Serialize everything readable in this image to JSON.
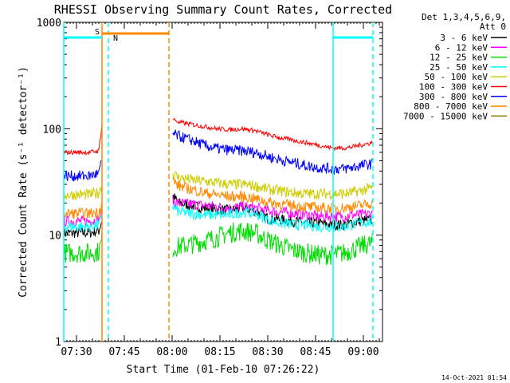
{
  "chart_data": {
    "type": "line",
    "title": "RHESSI Observing Summary Count Rates, Corrected",
    "xlabel": "Start Time (01-Feb-10 07:26:22)",
    "ylabel": "Corrected Count Rate (s⁻¹ detector⁻¹)",
    "yscale": "log",
    "ylim": [
      1,
      1000
    ],
    "xlim_minutes_after_0726": [
      0,
      100
    ],
    "y_ticks": [
      {
        "value": 1,
        "label": "1"
      },
      {
        "value": 10,
        "label": "10"
      },
      {
        "value": 100,
        "label": "100"
      },
      {
        "value": 1000,
        "label": "1000"
      }
    ],
    "x_ticks": [
      {
        "t": 4,
        "label": "07:30"
      },
      {
        "t": 19,
        "label": "07:45"
      },
      {
        "t": 34,
        "label": "08:00"
      },
      {
        "t": 49,
        "label": "08:15"
      },
      {
        "t": 64,
        "label": "08:30"
      },
      {
        "t": 79,
        "label": "08:45"
      },
      {
        "t": 94,
        "label": "09:00"
      }
    ],
    "legend_header": [
      "Det 1,3,4,5,6,9,",
      "Att 0"
    ],
    "legend_position": "right",
    "series": [
      {
        "name": "3 - 6 keV",
        "color": "#000000",
        "x": [
          0,
          8,
          11,
          12,
          33,
          34,
          36,
          40,
          44,
          48,
          52,
          56,
          60,
          64,
          68,
          72,
          76,
          80,
          84,
          88,
          90,
          93,
          97
        ],
        "y": [
          10.5,
          10.5,
          11,
          14,
          null,
          24,
          20,
          19,
          18,
          17.5,
          17,
          18,
          17,
          14.5,
          14,
          13.5,
          13,
          13,
          12.5,
          12.5,
          13,
          13.5,
          14
        ]
      },
      {
        "name": "6 - 12 keV",
        "color": "#ff00ff",
        "x": [
          0,
          8,
          11,
          12,
          33,
          34,
          36,
          40,
          44,
          48,
          52,
          56,
          60,
          64,
          68,
          72,
          76,
          80,
          84,
          88,
          90,
          93,
          97
        ],
        "y": [
          13.5,
          13.5,
          14,
          17,
          null,
          21,
          20,
          19.5,
          19,
          18.5,
          18,
          18.5,
          18,
          17,
          16.5,
          16,
          15.5,
          15,
          15,
          15,
          15.5,
          15.5,
          16
        ]
      },
      {
        "name": "12 - 25 keV",
        "color": "#00dd00",
        "x": [
          0,
          8,
          11,
          12,
          33,
          34,
          36,
          40,
          44,
          48,
          52,
          56,
          60,
          64,
          68,
          72,
          76,
          80,
          84,
          88,
          90,
          93,
          97
        ],
        "y": [
          6.8,
          6.8,
          7,
          9,
          null,
          7.5,
          7.8,
          8.2,
          8.8,
          9.5,
          10.5,
          11,
          10.5,
          9,
          8,
          7.2,
          6.8,
          6.5,
          6.5,
          6.8,
          7.2,
          7.8,
          8.5
        ]
      },
      {
        "name": "25 - 50 keV",
        "color": "#00ffff",
        "x": [
          0,
          8,
          11,
          12,
          33,
          34,
          36,
          40,
          44,
          48,
          52,
          56,
          60,
          64,
          68,
          72,
          76,
          80,
          84,
          88,
          90,
          93,
          97
        ],
        "y": [
          12,
          12,
          12.5,
          15,
          null,
          19,
          16.5,
          16,
          15.5,
          15.5,
          15.5,
          16.5,
          16,
          14,
          13,
          12.5,
          12.5,
          12,
          12,
          12,
          12.5,
          13,
          13.5
        ]
      },
      {
        "name": "50 - 100 keV",
        "color": "#cccc00",
        "x": [
          0,
          8,
          11,
          12,
          33,
          34,
          36,
          40,
          44,
          48,
          52,
          56,
          60,
          64,
          68,
          72,
          76,
          80,
          84,
          88,
          90,
          93,
          97
        ],
        "y": [
          24,
          24,
          25,
          30,
          null,
          38,
          35,
          33,
          32,
          31,
          30,
          30,
          29,
          27,
          26,
          25,
          24.5,
          24.5,
          24.5,
          24.5,
          25,
          26,
          28
        ]
      },
      {
        "name": "100 - 300 keV",
        "color": "#ff0000",
        "x": [
          0,
          8,
          11,
          12,
          33,
          34,
          36,
          40,
          44,
          48,
          52,
          56,
          60,
          64,
          68,
          72,
          76,
          80,
          84,
          88,
          90,
          93,
          97
        ],
        "y": [
          60,
          60,
          62,
          110,
          null,
          125,
          115,
          110,
          105,
          100,
          98,
          100,
          96,
          88,
          82,
          78,
          74,
          70,
          66,
          66,
          67,
          70,
          74
        ]
      },
      {
        "name": "300 - 800 keV",
        "color": "#0000ff",
        "x": [
          0,
          8,
          11,
          12,
          33,
          34,
          36,
          40,
          44,
          48,
          52,
          56,
          60,
          64,
          68,
          72,
          76,
          80,
          84,
          88,
          90,
          93,
          97
        ],
        "y": [
          36,
          36,
          38,
          50,
          null,
          90,
          85,
          78,
          70,
          65,
          63,
          62,
          60,
          55,
          51,
          48,
          45,
          43,
          42,
          42,
          43,
          45,
          47
        ]
      },
      {
        "name": "800 - 7000 keV",
        "color": "#ff8800",
        "x": [
          0,
          8,
          11,
          12,
          33,
          34,
          36,
          40,
          44,
          48,
          52,
          56,
          60,
          64,
          68,
          72,
          76,
          80,
          84,
          88,
          90,
          93,
          97
        ],
        "y": [
          16,
          16,
          16.5,
          20,
          null,
          33,
          29,
          27,
          25,
          24,
          23,
          23,
          22,
          20.5,
          19.5,
          19,
          18.5,
          18,
          18,
          18,
          18.5,
          19,
          20
        ]
      },
      {
        "name": "7000 - 15000 keV",
        "color": "#808000",
        "x": [],
        "y": []
      }
    ],
    "annotations": [
      {
        "label": "S",
        "color": "#ff8800",
        "start": 12,
        "end": 33
      },
      {
        "label": "N",
        "color": "#00ffff",
        "start": 0,
        "end": 12
      },
      {
        "label": "",
        "color": "#00ffff",
        "start": 84.5,
        "end": 97
      }
    ],
    "vertical_markers": [
      {
        "t": 12,
        "color": "#ff8800",
        "style": "solid"
      },
      {
        "t": 33,
        "color": "#ff8800",
        "style": "dashed"
      },
      {
        "t": 0,
        "color": "#00ffff",
        "style": "solid"
      },
      {
        "t": 14,
        "color": "#00ffff",
        "style": "dashed"
      },
      {
        "t": 84.5,
        "color": "#00ffff",
        "style": "solid"
      },
      {
        "t": 97,
        "color": "#00ffff",
        "style": "dashed"
      }
    ]
  },
  "footer_timestamp": "14-Oct-2021 01:54"
}
